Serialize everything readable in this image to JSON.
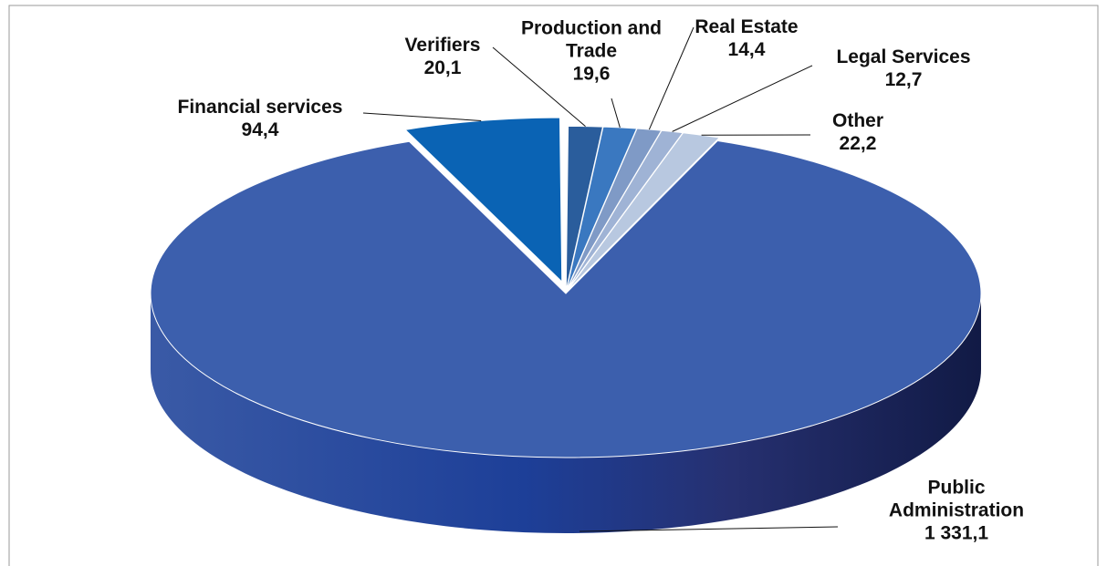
{
  "chart_data": {
    "type": "pie3d",
    "categories": [
      "Verifiers",
      "Production and Trade",
      "Real Estate",
      "Legal Services",
      "Other",
      "Public Administration",
      "Financial services"
    ],
    "values": [
      20.1,
      19.6,
      14.4,
      12.7,
      22.2,
      1331.1,
      94.4
    ],
    "value_labels": [
      "20,1",
      "19,6",
      "14,4",
      "12,7",
      "22,2",
      "1 331,1",
      "94,4"
    ],
    "colors": [
      "#2a5d9c",
      "#3a78c0",
      "#7f9ac6",
      "#9fb3d5",
      "#b8c8e0",
      "#3c5fad",
      "#0a63b4"
    ]
  }
}
